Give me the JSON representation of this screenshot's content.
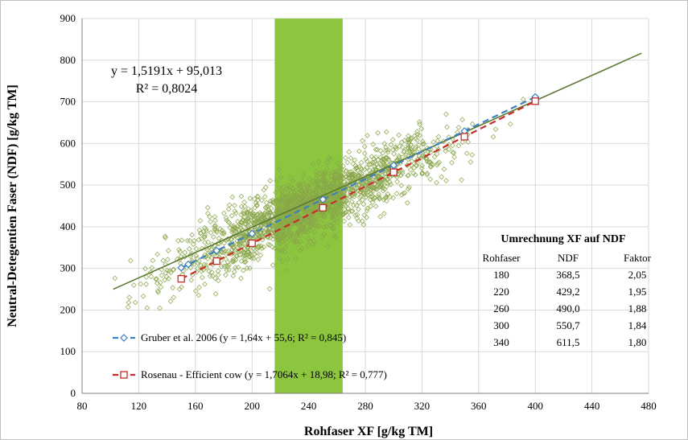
{
  "chart_data": {
    "type": "scatter",
    "xlabel": "Rohfaser XF [g/kg TM]",
    "ylabel": "Neutral-Detegentien Faser (NDF) [g/kg TM]",
    "xlim": [
      80,
      480
    ],
    "ylim": [
      0,
      900
    ],
    "xticks": [
      80,
      120,
      160,
      200,
      240,
      280,
      320,
      360,
      400,
      440,
      480
    ],
    "yticks": [
      0,
      100,
      200,
      300,
      400,
      500,
      600,
      700,
      800,
      900
    ],
    "grid": true,
    "highlight_band": {
      "x_from": 216,
      "x_to": 264,
      "color": "#8cc63f"
    },
    "scatter_color": "#8aa64a",
    "regression": {
      "slope": 1.5191,
      "intercept": 95.013,
      "x_range": [
        102,
        475
      ],
      "color": "#5a7a32",
      "equation": "y = 1,5191x + 95,013",
      "r2": "R² = 0,8024"
    },
    "series": [
      {
        "name": "Gruber et al. 2006 (y = 1,64x + 55,6; R² = 0,845)",
        "color": "#3d7fc1",
        "marker": "diamond",
        "x": [
          150,
          155,
          175,
          200,
          250,
          300,
          350,
          400
        ],
        "y": [
          301.6,
          309.8,
          342.6,
          383.6,
          465.6,
          547.6,
          629.6,
          711.6
        ]
      },
      {
        "name": "Rosenau - Efficient cow (y = 1,7064x + 18,98; R² = 0,777)",
        "color": "#cc2a2a",
        "marker": "square",
        "x": [
          150,
          175,
          200,
          250,
          300,
          350,
          400
        ],
        "y": [
          274.9,
          317.6,
          360.3,
          445.6,
          530.9,
          616.2,
          701.5
        ]
      }
    ],
    "conversion_table": {
      "title": "Umrechnung XF auf NDF",
      "headers": [
        "Rohfaser",
        "NDF",
        "Faktor"
      ],
      "rows": [
        [
          "180",
          "368,5",
          "2,05"
        ],
        [
          "220",
          "429,2",
          "1,95"
        ],
        [
          "260",
          "490,0",
          "1,88"
        ],
        [
          "300",
          "550,7",
          "1,84"
        ],
        [
          "340",
          "611,5",
          "1,80"
        ]
      ]
    }
  }
}
